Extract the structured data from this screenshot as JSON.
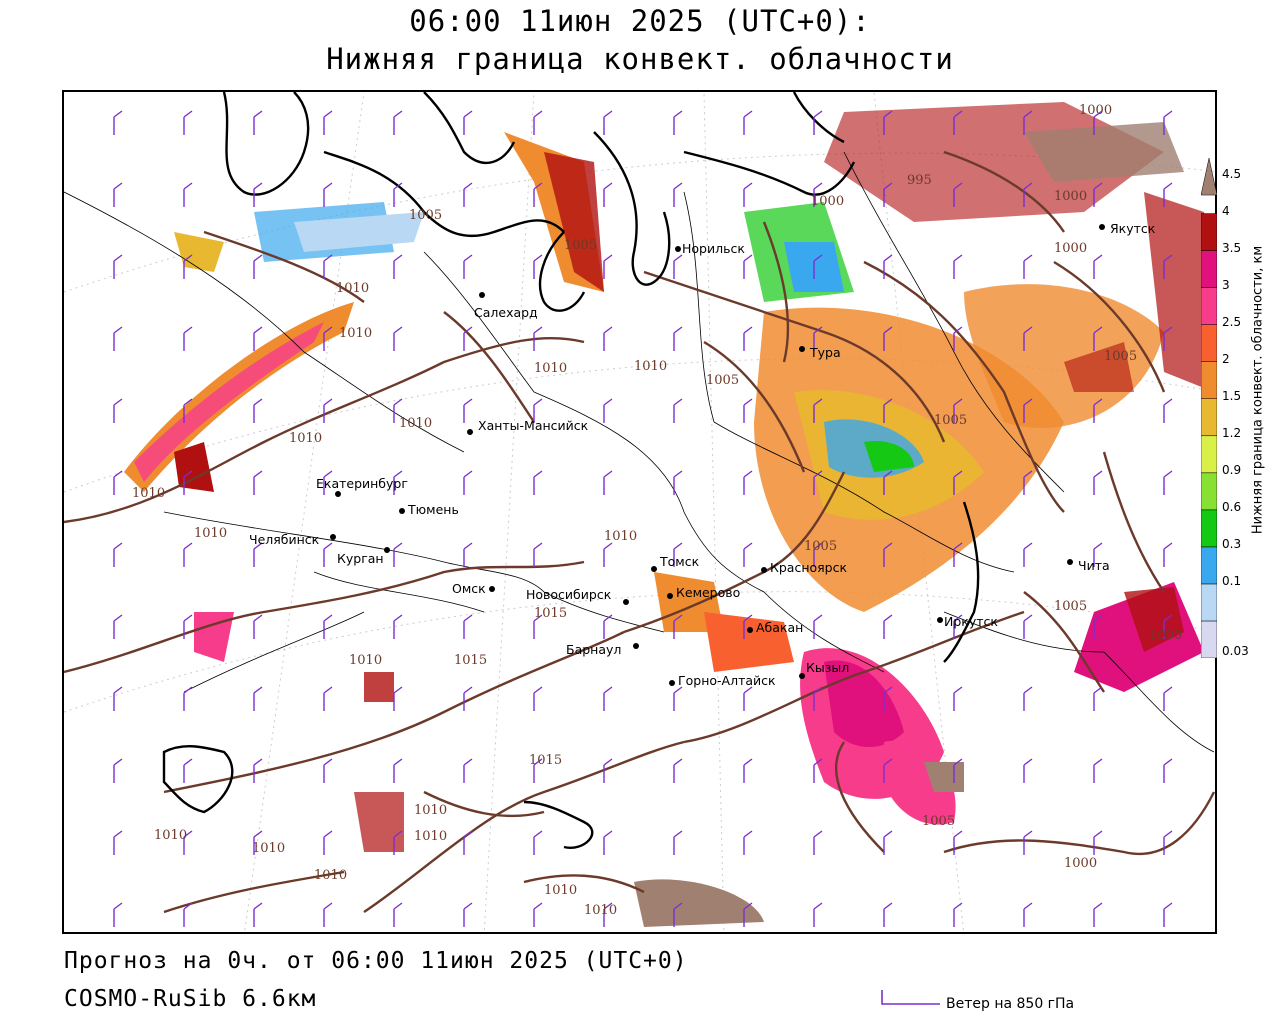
{
  "title": {
    "line1": "06:00 11июн 2025 (UTC+0):",
    "line2": "Нижняя граница конвект. облачности"
  },
  "footer": {
    "line1": "Прогноз на 0ч. от 06:00 11июн 2025 (UTC+0)",
    "line2": "COSMO-RuSib 6.6км"
  },
  "wind_legend": {
    "label": "Ветер на 850 гПа",
    "color": "#7b2fd0"
  },
  "colorbar": {
    "title": "Нижняя граница конвект. облачности, км",
    "levels": [
      "0.03",
      "0.1",
      "0.3",
      "0.6",
      "0.9",
      "1.2",
      "1.5",
      "2",
      "2.5",
      "3",
      "3.5",
      "4",
      "4.5"
    ],
    "colors": [
      "#d8d8f0",
      "#b8d8f4",
      "#3aa8ee",
      "#14c814",
      "#88e032",
      "#d8f048",
      "#e8b830",
      "#f08c30",
      "#f86030",
      "#f83c8c",
      "#e0107c",
      "#b01010",
      "#a08070"
    ]
  },
  "colors": {
    "isobar": "#6b3a2a",
    "coast": "#000000",
    "border": "#000000",
    "wind": "#7b2fd0"
  },
  "cities": [
    {
      "name": "Салехард"
    },
    {
      "name": "Норильск"
    },
    {
      "name": "Тура"
    },
    {
      "name": "Якутск"
    },
    {
      "name": "Ханты-Мансийск"
    },
    {
      "name": "Екатеринбург"
    },
    {
      "name": "Тюмень"
    },
    {
      "name": "Челябинск"
    },
    {
      "name": "Курган"
    },
    {
      "name": "Омск"
    },
    {
      "name": "Новосибирск"
    },
    {
      "name": "Томск"
    },
    {
      "name": "Кемерово"
    },
    {
      "name": "Красноярск"
    },
    {
      "name": "Абакан"
    },
    {
      "name": "Барнаул"
    },
    {
      "name": "Горно-Алтайск"
    },
    {
      "name": "Кызыл"
    },
    {
      "name": "Иркутск"
    },
    {
      "name": "Чита"
    }
  ],
  "isobar_labels": [
    "1005",
    "1005",
    "1000",
    "995",
    "1000",
    "1000",
    "1000",
    "1010",
    "1010",
    "1010",
    "1010",
    "1010",
    "1005",
    "1010",
    "1010",
    "1010",
    "1010",
    "1015",
    "1015",
    "1015",
    "1005",
    "1005",
    "1005",
    "1010",
    "1000",
    "1010",
    "1010",
    "1010",
    "1010",
    "1010",
    "1010",
    "1010",
    "1005",
    "1000",
    "1005"
  ]
}
